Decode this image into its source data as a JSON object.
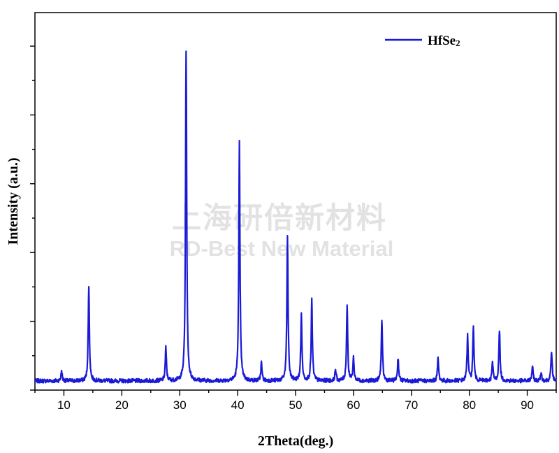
{
  "chart_data": {
    "type": "line",
    "xlabel": "2Theta(deg.)",
    "ylabel": "Intensity (a.u.)",
    "xlim": [
      5,
      95
    ],
    "ylim": [
      0,
      1
    ],
    "x_ticks": [
      10,
      20,
      30,
      40,
      50,
      60,
      70,
      80,
      90
    ],
    "y_ticks_labeled": false,
    "grid": false,
    "legend_position": "top-right",
    "series_color": "#1a1ad6",
    "series": [
      {
        "name": "HfSe2",
        "baseline": 0.015,
        "peaks": [
          {
            "x": 9.6,
            "y": 0.03
          },
          {
            "x": 14.3,
            "y": 0.29
          },
          {
            "x": 27.6,
            "y": 0.1
          },
          {
            "x": 31.1,
            "y": 1.0
          },
          {
            "x": 40.3,
            "y": 0.72
          },
          {
            "x": 44.1,
            "y": 0.055
          },
          {
            "x": 48.6,
            "y": 0.44
          },
          {
            "x": 51.0,
            "y": 0.2
          },
          {
            "x": 52.8,
            "y": 0.245
          },
          {
            "x": 56.9,
            "y": 0.035
          },
          {
            "x": 58.9,
            "y": 0.23
          },
          {
            "x": 60.0,
            "y": 0.07
          },
          {
            "x": 64.9,
            "y": 0.185
          },
          {
            "x": 67.7,
            "y": 0.07
          },
          {
            "x": 74.6,
            "y": 0.07
          },
          {
            "x": 79.7,
            "y": 0.14
          },
          {
            "x": 80.7,
            "y": 0.165
          },
          {
            "x": 84.0,
            "y": 0.055
          },
          {
            "x": 85.2,
            "y": 0.155
          },
          {
            "x": 90.9,
            "y": 0.045
          },
          {
            "x": 92.4,
            "y": 0.025
          },
          {
            "x": 94.2,
            "y": 0.09
          }
        ]
      }
    ]
  },
  "legend": {
    "label": "HfSe",
    "subscript": "2"
  },
  "watermark": {
    "cn": "上海研倍新材料",
    "en": "RD-Best New Material"
  }
}
